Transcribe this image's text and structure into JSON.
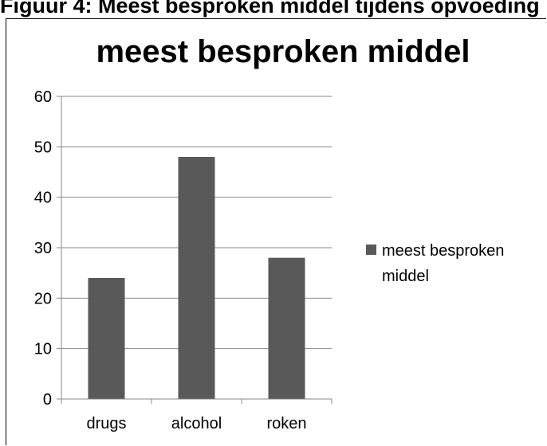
{
  "figure_caption": "Figuur 4: Meest besproken middel tijdens opvoeding",
  "colors": {
    "bar": "#595959",
    "grid": "#878787",
    "axis": "#878787"
  },
  "chart_data": {
    "type": "bar",
    "title": "meest besproken middel",
    "xlabel": "",
    "ylabel": "",
    "categories": [
      "drugs",
      "alcohol",
      "roken"
    ],
    "series": [
      {
        "name": "meest besproken middel",
        "values": [
          24,
          48,
          28
        ]
      }
    ],
    "ylim": [
      0,
      60
    ],
    "yticks": [
      0,
      10,
      20,
      30,
      40,
      50,
      60
    ],
    "grid": true,
    "legend": "right",
    "legend_lines": [
      "meest besproken",
      "middel"
    ]
  }
}
